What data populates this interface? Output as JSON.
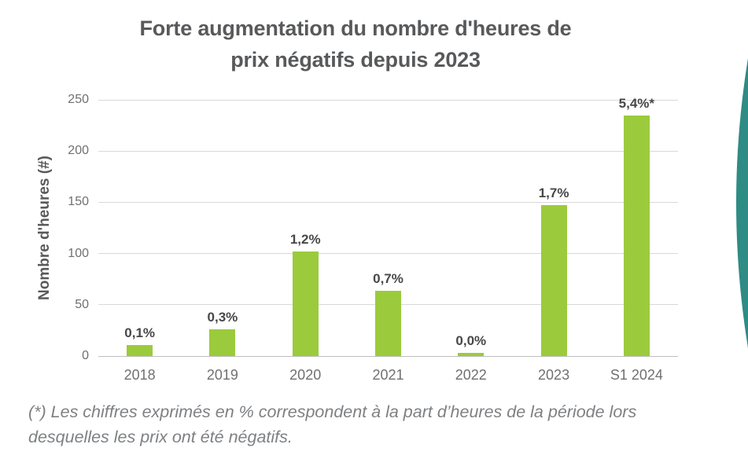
{
  "title": {
    "line1": "Forte augmentation du nombre d'heures de",
    "line2": "prix négatifs depuis 2023"
  },
  "chart_data": {
    "type": "bar",
    "title": "Forte augmentation du nombre d'heures de prix négatifs depuis 2023",
    "categories": [
      "2018",
      "2019",
      "2020",
      "2021",
      "2022",
      "2023",
      "S1 2024"
    ],
    "values": [
      11,
      26,
      102,
      64,
      3,
      147,
      235
    ],
    "bar_labels": [
      "0,1%",
      "0,3%",
      "1,2%",
      "0,7%",
      "0,0%",
      "1,7%",
      "5,4%*"
    ],
    "xlabel": "",
    "ylabel": "Nombre d'heures (#)",
    "ylim": [
      0,
      250
    ],
    "yticks": [
      0,
      50,
      100,
      150,
      200,
      250
    ],
    "grid": true,
    "legend": "none",
    "bar_color": "#9BCB3C"
  },
  "footnote": {
    "line1": "(*) Les chiffres exprimés en % correspondent à la part d’heures de la période lors",
    "line2": "desquelles les prix ont été négatifs."
  },
  "colors": {
    "bar": "#9BCB3C",
    "title_text": "#58595B",
    "axis_text": "#6F7072",
    "bar_label_text": "#474747",
    "footnote_text": "#7E8083",
    "gridline": "#D9D9D9",
    "axis_line": "#BFBFBF",
    "teal_decoration": "#2E8C85"
  }
}
